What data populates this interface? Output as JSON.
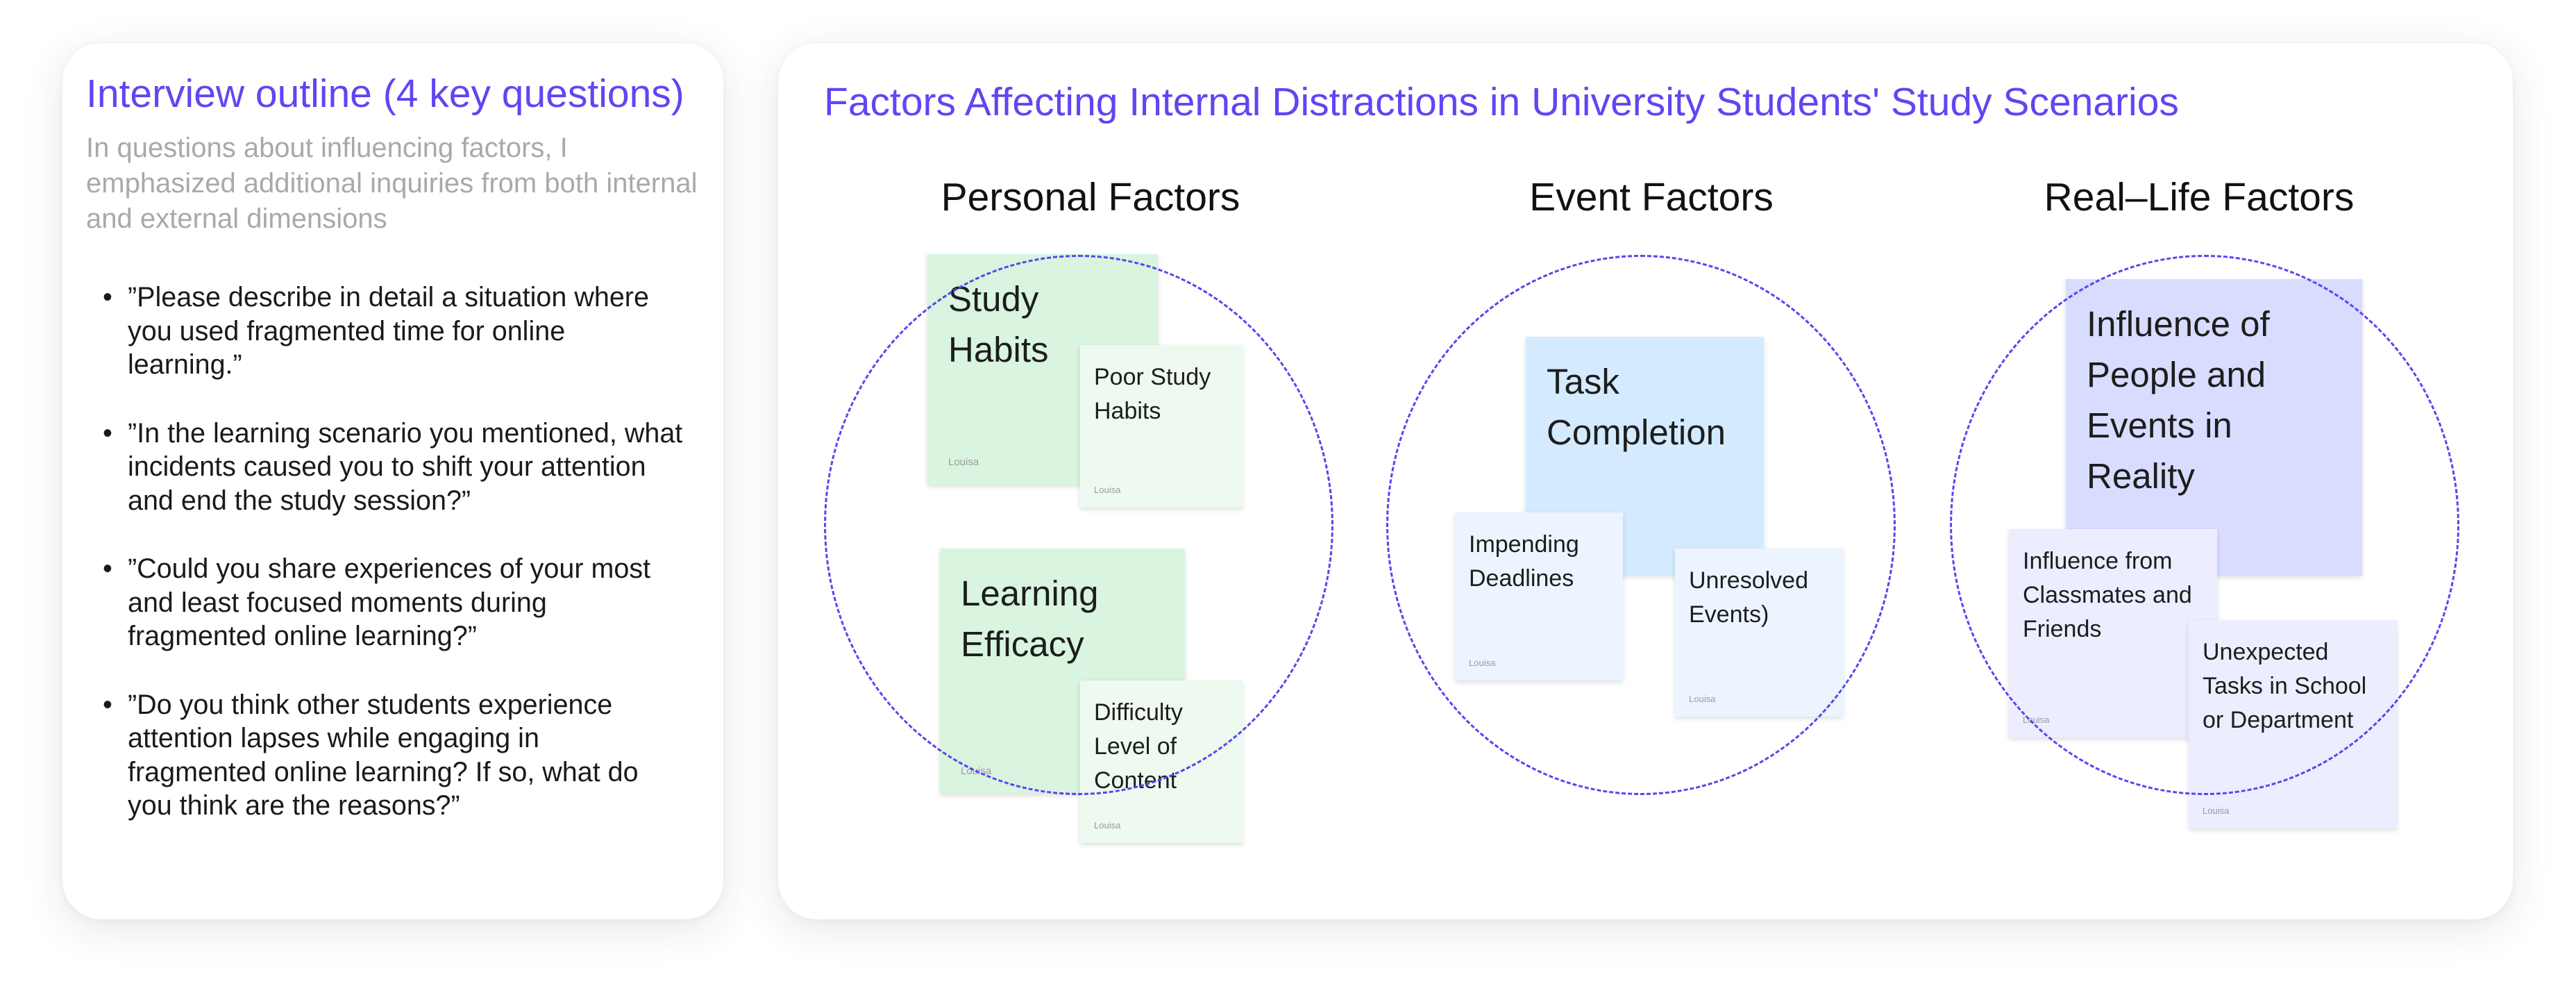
{
  "interview_outline": {
    "title": "Interview outline (4 key questions)",
    "subtitle": "In questions about influencing factors, I emphasized additional inquiries from both internal and external dimensions",
    "bullet_symbol": "•",
    "questions": [
      "”Please describe in detail a situation where you used fragmented time for online learning.”",
      "”In the learning scenario you mentioned, what incidents caused you to shift your attention and end the study session?”",
      "”Could you share experiences of your most and least focused moments during fragmented online learning?”",
      "”Do you think other students experience attention lapses while engaging in fragmented online learning? If so, what do you think are the reasons?”"
    ]
  },
  "factors_board": {
    "title": "Factors Affecting Internal Distractions in University Students' Study Scenarios",
    "groups": [
      {
        "heading": "Personal Factors",
        "notes": [
          {
            "text": "Study Habits",
            "author": "Louisa"
          },
          {
            "text": "Poor Study Habits",
            "author": "Louisa"
          },
          {
            "text": "Learning Efficacy",
            "author": "Louisa"
          },
          {
            "text": "Difficulty Level of Content",
            "author": "Louisa"
          }
        ]
      },
      {
        "heading": "Event Factors",
        "notes": [
          {
            "text": "Task Completion",
            "author": ""
          },
          {
            "text": "Impending Deadlines",
            "author": "Louisa"
          },
          {
            "text": "Unresolved Events)",
            "author": "Louisa"
          }
        ]
      },
      {
        "heading": "Real–Life Factors",
        "notes": [
          {
            "text": "Influence of People and Events in Reality",
            "author": ""
          },
          {
            "text": "Influence from Classmates and Friends",
            "author": "Louisa"
          },
          {
            "text": "Unexpected Tasks in School or Department",
            "author": "Louisa"
          }
        ]
      }
    ],
    "colors": {
      "accent": "#6046f2",
      "circle_dash": "#5a45ee",
      "personal_primary": "#d9f4df",
      "personal_secondary": "#eef9f0",
      "event_primary": "#d4ebff",
      "event_secondary": "#ecf5ff",
      "reallife_primary": "#d8dcff",
      "reallife_secondary": "#eceeff"
    }
  }
}
